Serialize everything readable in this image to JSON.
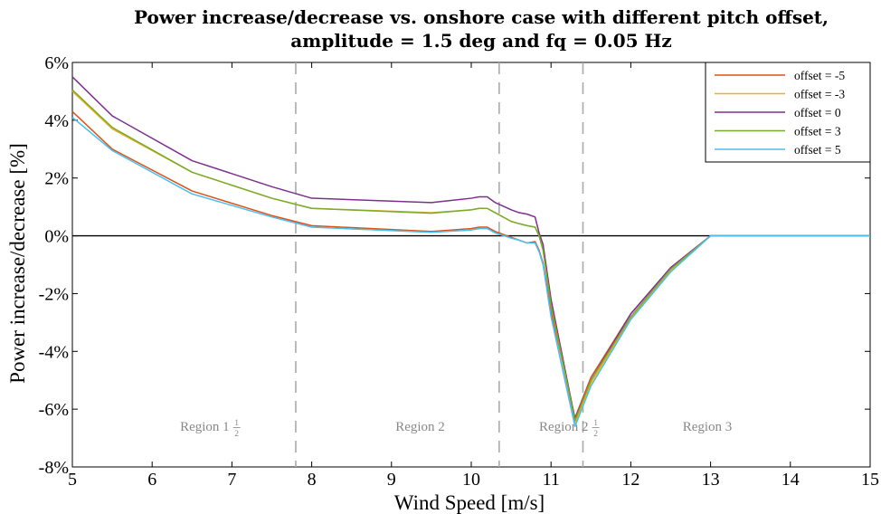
{
  "chart_data": {
    "type": "line",
    "title_line1": "Power increase/decrease vs. onshore case with different pitch offset,",
    "title_line2": "amplitude = 1.5 deg and fq = 0.05 Hz",
    "xlabel": "Wind Speed [m/s]",
    "ylabel": "Power increase/decrease [%]",
    "xlim": [
      5,
      15
    ],
    "ylim": [
      -8,
      6
    ],
    "xticks": [
      5,
      6,
      7,
      8,
      9,
      10,
      11,
      12,
      13,
      14,
      15
    ],
    "yticks": [
      -8,
      -6,
      -4,
      -2,
      0,
      2,
      4,
      6
    ],
    "ytick_labels": [
      "-8%",
      "-6%",
      "-4%",
      "-2%",
      "0%",
      "2%",
      "4%",
      "6%"
    ],
    "legend_position": "top-right",
    "grid": false,
    "zero_line": 0,
    "region_dividers": [
      7.8,
      10.35,
      11.4
    ],
    "regions": [
      {
        "label": "Region 1",
        "fraction": "1/2",
        "x": 6.35
      },
      {
        "label": "Region 2",
        "fraction": "",
        "x": 9.05
      },
      {
        "label": "Region 2",
        "fraction": "1/2",
        "x": 10.85
      },
      {
        "label": "Region 3",
        "fraction": "",
        "x": 12.65
      }
    ],
    "x": [
      5,
      5.5,
      6.5,
      7.5,
      8,
      9.5,
      10,
      10.1,
      10.2,
      10.3,
      10.5,
      10.6,
      10.7,
      10.8,
      10.85,
      10.9,
      11,
      11.3,
      11.5,
      12,
      12.5,
      13,
      13.5,
      14,
      15
    ],
    "series": [
      {
        "name": "offset = -5",
        "color": "#D95319",
        "values": [
          4.3,
          3.0,
          1.55,
          0.7,
          0.35,
          0.15,
          0.25,
          0.3,
          0.3,
          0.15,
          -0.05,
          -0.15,
          -0.25,
          -0.2,
          -0.5,
          -0.95,
          -2.6,
          -6.3,
          -4.9,
          -2.7,
          -1.1,
          0,
          0,
          0,
          0
        ]
      },
      {
        "name": "offset = -3",
        "color": "#EDB120",
        "values": [
          5.0,
          3.7,
          2.2,
          1.3,
          0.95,
          0.8,
          0.9,
          0.95,
          0.95,
          0.8,
          0.5,
          0.42,
          0.35,
          0.3,
          0.0,
          -0.5,
          -2.4,
          -6.5,
          -5.1,
          -2.85,
          -1.2,
          0,
          0,
          0,
          0
        ]
      },
      {
        "name": "offset = 0",
        "color": "#7E2F8E",
        "values": [
          5.5,
          4.15,
          2.6,
          1.7,
          1.3,
          1.15,
          1.3,
          1.35,
          1.35,
          1.15,
          0.9,
          0.8,
          0.75,
          0.65,
          0.1,
          -0.3,
          -2.2,
          -6.35,
          -5.0,
          -2.7,
          -1.1,
          0,
          0,
          0,
          0
        ]
      },
      {
        "name": "offset = 3",
        "color": "#77AC30",
        "values": [
          5.05,
          3.75,
          2.2,
          1.3,
          0.95,
          0.78,
          0.9,
          0.95,
          0.95,
          0.8,
          0.5,
          0.42,
          0.35,
          0.3,
          0.0,
          -0.5,
          -2.4,
          -6.4,
          -5.0,
          -2.8,
          -1.15,
          0,
          0,
          0,
          0
        ]
      },
      {
        "name": "offset = 5",
        "color": "#4DBEEE",
        "values": [
          4.1,
          2.95,
          1.45,
          0.65,
          0.3,
          0.12,
          0.2,
          0.25,
          0.25,
          0.1,
          -0.08,
          -0.15,
          -0.25,
          -0.25,
          -0.55,
          -1.0,
          -2.8,
          -6.6,
          -5.2,
          -2.9,
          -1.25,
          0,
          0,
          0,
          0
        ]
      }
    ]
  }
}
